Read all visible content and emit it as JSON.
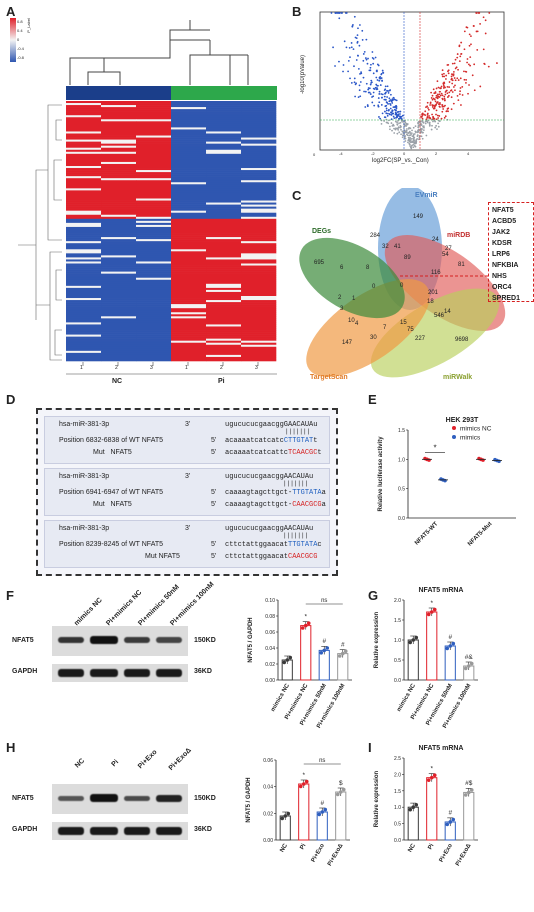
{
  "panels": {
    "A": "A",
    "B": "B",
    "C": "C",
    "D": "D",
    "E": "E",
    "F": "F",
    "G": "G",
    "H": "H",
    "I": "I"
  },
  "heatmap": {
    "legend_title": "P_Label",
    "legend_ticks": [
      "0.8",
      "0.4",
      "0",
      "-0.4",
      "-0.8"
    ],
    "samples": [
      "1",
      "2",
      "3",
      "1",
      "2",
      "3"
    ],
    "groups": [
      "NC",
      "Pi"
    ],
    "colors": {
      "high": "#e0202a",
      "low": "#2f56b0",
      "mid": "#f3f3f3",
      "nc": "#1b3e8a",
      "pi": "#2da84b"
    }
  },
  "volcano": {
    "xlabel": "log2FC(SP_vs._Con)",
    "ylabel": "-log10(pValue)",
    "xticks": [
      "-4",
      "-2",
      "0",
      "2",
      "4"
    ],
    "yticks": [
      "0",
      "1",
      "2",
      "3",
      "4",
      "5",
      "6",
      "7"
    ],
    "colors": {
      "up": "#d42a2a",
      "down": "#2a56c8",
      "ns": "#9aa1a8"
    }
  },
  "venn": {
    "sets": [
      "DEGs",
      "EVmiR",
      "miRDB",
      "miRWalk",
      "TargetScan"
    ],
    "numbers": [
      "149",
      "284",
      "24",
      "27",
      "32",
      "41",
      "89",
      "54",
      "695",
      "6",
      "8",
      "116",
      "81",
      "0",
      "201",
      "1",
      "18",
      "14",
      "2",
      "3",
      "10",
      "4",
      "7",
      "15",
      "546",
      "30",
      "75",
      "227",
      "147",
      "9698",
      "0"
    ],
    "genes": [
      "NFAT5",
      "ACBD5",
      "JAK2",
      "KDSR",
      "LRP6",
      "NFKBIA",
      "NHS",
      "ORC4",
      "SPRED1"
    ]
  },
  "seq": {
    "blocks": [
      {
        "mir": "hsa-miR-381-3p",
        "end3": "3'",
        "mir_seq": "ugucucucgaacggGAACAUAu",
        "wt_label": "Position 6832-6838 of WT NFAT5",
        "end5a": "5'",
        "wt_pre": "acaaaatcatcatc",
        "wt_site": "CTTGTAT",
        "wt_post": "t",
        "mut_label": "Mut   NFAT5",
        "end5b": "5'",
        "mut_pre": "acaaaatcatcattc",
        "mut_site": "TCAACGC",
        "mut_post": "t"
      },
      {
        "mir": "hsa-miR-381-3p",
        "end3": "3'",
        "mir_seq": "ugucucucgaacggAACAUAu",
        "wt_label": "Position 6941-6947 of WT NFAT5",
        "end5a": "5'",
        "wt_pre": "caaaagtagcttgct-",
        "wt_site": "TTGTATA",
        "wt_post": "a",
        "mut_label": "Mut   NFAT5",
        "end5b": "5'",
        "mut_pre": "caaaagtagcttgct-",
        "mut_site": "CAACGCG",
        "mut_post": "a"
      },
      {
        "mir": "hsa-miR-381-3p",
        "end3": "3'",
        "mir_seq": "ugucucucgaacggAACAUAu",
        "wt_label": "Position 8239-8245 of WT NFAT5",
        "end5a": "5'",
        "wt_pre": "cttctattggaacat",
        "wt_site": "TTGTATA",
        "wt_post": "c",
        "mut_label": "Mut NFAT5",
        "end5b": "5'",
        "mut_pre": "cttctattggaacat",
        "mut_site": "CAACGCG",
        "mut_post": ""
      }
    ]
  },
  "chart_data": [
    {
      "panel": "E",
      "type": "scatter",
      "title": "HEK 293T",
      "ylabel": "Relative luciferase activity",
      "categories": [
        "NFAT5-WT",
        "NFAT5-Mut"
      ],
      "ylim": [
        0,
        1.5
      ],
      "yticks": [
        "0.0",
        "0.5",
        "1.0",
        "1.5"
      ],
      "series": [
        {
          "name": "mimics NC",
          "color": "#e0202a",
          "values": [
            1.0,
            1.0
          ]
        },
        {
          "name": "mimics",
          "color": "#2f5fbf",
          "values": [
            0.65,
            0.98
          ]
        }
      ],
      "annotations": [
        "*"
      ]
    },
    {
      "panel": "F",
      "type": "bar",
      "ylabel": "NFAT5 / GAPDH",
      "categories": [
        "mimics NC",
        "Pi+mimics NC",
        "Pi+mimics 50nM",
        "Pi+mimics 100nM"
      ],
      "values": [
        0.025,
        0.068,
        0.037,
        0.033
      ],
      "ylim": [
        0,
        0.1
      ],
      "yticks": [
        "0.00",
        "0.02",
        "0.04",
        "0.06",
        "0.08",
        "0.10"
      ],
      "colors": [
        "#3a3a3a",
        "#e0202a",
        "#2f5fbf",
        "#999999"
      ],
      "annotations": [
        "*",
        "ns",
        "#",
        "#"
      ]
    },
    {
      "panel": "G",
      "type": "bar",
      "title": "NFAT5 mRNA",
      "ylabel": "Relative expression",
      "categories": [
        "mimics NC",
        "Pi+mimics NC",
        "Pi+mimics 50nM",
        "Pi+mimics 100nM"
      ],
      "values": [
        1.0,
        1.7,
        0.85,
        0.35
      ],
      "ylim": [
        0,
        2.0
      ],
      "yticks": [
        "0.0",
        "0.5",
        "1.0",
        "1.5",
        "2.0"
      ],
      "colors": [
        "#3a3a3a",
        "#e0202a",
        "#2f5fbf",
        "#999999"
      ],
      "annotations": [
        "*",
        "#",
        "#&"
      ]
    },
    {
      "panel": "H",
      "type": "bar",
      "ylabel": "NFAT5 / GAPDH",
      "categories": [
        "NC",
        "Pi",
        "Pi+Exo",
        "Pi+ExoΔ"
      ],
      "values": [
        0.018,
        0.042,
        0.021,
        0.036
      ],
      "ylim": [
        0,
        0.06
      ],
      "yticks": [
        "0.00",
        "0.02",
        "0.04",
        "0.06"
      ],
      "colors": [
        "#3a3a3a",
        "#e0202a",
        "#2f5fbf",
        "#999999"
      ],
      "annotations": [
        "*",
        "ns",
        "#",
        "$"
      ]
    },
    {
      "panel": "I",
      "type": "bar",
      "title": "NFAT5 mRNA",
      "ylabel": "Relative expression",
      "categories": [
        "NC",
        "Pi",
        "Pi+Exo",
        "Pi+ExoΔ"
      ],
      "values": [
        1.0,
        1.9,
        0.55,
        1.45
      ],
      "ylim": [
        0,
        2.5
      ],
      "yticks": [
        "0.0",
        "0.5",
        "1.0",
        "1.5",
        "2.0",
        "2.5"
      ],
      "colors": [
        "#3a3a3a",
        "#e0202a",
        "#2f5fbf",
        "#999999"
      ],
      "annotations": [
        "*",
        "#",
        "#$"
      ]
    }
  ],
  "blots": {
    "F": {
      "lanes": [
        "mimics NC",
        "Pi+mimics NC",
        "Pi+mimics 50nM",
        "Pi+mimics 100nM"
      ],
      "rows": [
        {
          "protein": "NFAT5",
          "size": "150KD"
        },
        {
          "protein": "GAPDH",
          "size": "36KD"
        }
      ]
    },
    "H": {
      "lanes": [
        "NC",
        "Pi",
        "Pi+Exo",
        "Pi+ExoΔ"
      ],
      "rows": [
        {
          "protein": "NFAT5",
          "size": "150KD"
        },
        {
          "protein": "GAPDH",
          "size": "36KD"
        }
      ]
    }
  }
}
